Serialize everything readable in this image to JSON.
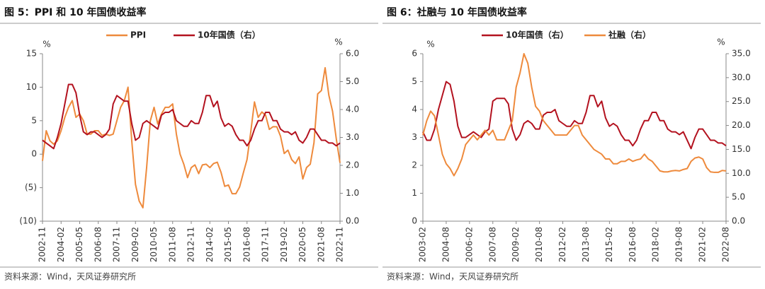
{
  "chart_data": [
    {
      "type": "line",
      "title": "图 5：PPI 和 10 年国债收益率",
      "source": "资料来源：Wind，天风证券研究所",
      "y_unit": "%",
      "y2_unit": "%",
      "categories": [
        "2002-11",
        null,
        null,
        null,
        null,
        "2004-02",
        null,
        null,
        null,
        null,
        "2005-05",
        null,
        null,
        null,
        null,
        "2006-08",
        null,
        null,
        null,
        null,
        "2007-11",
        null,
        null,
        null,
        null,
        "2009-02",
        null,
        null,
        null,
        null,
        "2010-05",
        null,
        null,
        null,
        null,
        "2011-08",
        null,
        null,
        null,
        null,
        "2012-11",
        null,
        null,
        null,
        null,
        "2014-02",
        null,
        null,
        null,
        null,
        "2015-05",
        null,
        null,
        null,
        null,
        "2016-08",
        null,
        null,
        null,
        null,
        "2017-11",
        null,
        null,
        null,
        null,
        "2019-02",
        null,
        null,
        null,
        null,
        "2020-05",
        null,
        null,
        null,
        null,
        "2021-08",
        null,
        null,
        null,
        null,
        "2022-11"
      ],
      "ylim": [
        -10,
        15
      ],
      "yticks": [
        {
          "value": -10,
          "label": "(10)"
        },
        {
          "value": -5,
          "label": "(5)"
        },
        0,
        5,
        10,
        15
      ],
      "y2lim": [
        0,
        6
      ],
      "y2ticks": [
        {
          "value": 0,
          "label": "0.0"
        },
        {
          "value": 1,
          "label": "1.0"
        },
        {
          "value": 2,
          "label": "2.0"
        },
        {
          "value": 3,
          "label": "3.0"
        },
        {
          "value": 4,
          "label": "4.0"
        },
        {
          "value": 5,
          "label": "5.0"
        },
        {
          "value": 6,
          "label": "6.0"
        }
      ],
      "series": [
        {
          "name": "PPI",
          "color": "#ee8a3c",
          "values": [
            -1,
            3.5,
            2,
            1.5,
            2,
            3.5,
            5.5,
            7,
            8,
            5.5,
            6,
            5,
            3,
            3,
            3.5,
            3.5,
            2.8,
            3,
            2.8,
            3,
            5,
            7,
            8,
            10,
            2,
            -4.5,
            -7,
            -8,
            -2,
            5,
            7,
            4.5,
            6,
            7,
            7,
            7.5,
            3,
            0,
            -1.5,
            -3.5,
            -2,
            -1.6,
            -2.9,
            -1.6,
            -1.5,
            -2,
            -1.4,
            -1.2,
            -2.7,
            -4.8,
            -4.6,
            -5.9,
            -5.9,
            -4.9,
            -2.8,
            -0.8,
            3.3,
            7.8,
            5.5,
            6.3,
            5.8,
            3.7,
            4.1,
            4.1,
            2.7,
            0.1,
            0.6,
            -0.8,
            -1.4,
            -0.4,
            -3.7,
            -2,
            -1.5,
            1.7,
            9,
            9.5,
            12.9,
            8.8,
            6.4,
            2.3,
            -1.3
          ]
        },
        {
          "name": "10年国债（右）",
          "color": "#b3121f",
          "axis": "y2",
          "values": [
            2.9,
            2.8,
            2.7,
            2.6,
            3.0,
            3.5,
            4.2,
            4.9,
            4.9,
            4.6,
            3.8,
            3.2,
            3.1,
            3.2,
            3.2,
            3.1,
            3.0,
            3.1,
            3.3,
            4.2,
            4.5,
            4.4,
            4.3,
            4.3,
            3.5,
            2.9,
            3.0,
            3.5,
            3.6,
            3.5,
            3.4,
            3.3,
            3.8,
            3.9,
            3.9,
            4.0,
            3.6,
            3.5,
            3.4,
            3.4,
            3.6,
            3.5,
            3.5,
            3.9,
            4.5,
            4.5,
            4.1,
            4.3,
            3.7,
            3.4,
            3.5,
            3.4,
            3.1,
            2.9,
            2.9,
            2.7,
            2.9,
            3.3,
            3.6,
            3.6,
            3.9,
            3.9,
            3.6,
            3.6,
            3.3,
            3.2,
            3.2,
            3.1,
            3.2,
            2.9,
            2.8,
            3.0,
            3.3,
            3.3,
            3.1,
            2.9,
            2.9,
            2.8,
            2.8,
            2.7,
            2.8
          ]
        }
      ]
    },
    {
      "type": "line",
      "title": "图 6：社融与 10 年国债收益率",
      "source": "资料来源：Wind，天风证券研究所",
      "y_unit": "%",
      "y2_unit": "%",
      "categories": [
        "2003-02",
        null,
        null,
        null,
        null,
        null,
        "2004-08",
        null,
        null,
        null,
        null,
        null,
        "2006-02",
        null,
        null,
        null,
        null,
        null,
        "2007-08",
        null,
        null,
        null,
        null,
        null,
        "2009-02",
        null,
        null,
        null,
        null,
        null,
        "2010-08",
        null,
        null,
        null,
        null,
        null,
        "2012-02",
        null,
        null,
        null,
        null,
        null,
        "2013-08",
        null,
        null,
        null,
        null,
        null,
        "2015-02",
        null,
        null,
        null,
        null,
        null,
        "2016-08",
        null,
        null,
        null,
        null,
        null,
        "2018-02",
        null,
        null,
        null,
        null,
        null,
        "2019-08",
        null,
        null,
        null,
        null,
        null,
        "2021-02",
        null,
        null,
        null,
        null,
        null,
        "2022-08"
      ],
      "ylim": [
        0,
        6
      ],
      "yticks": [
        0,
        1,
        2,
        3,
        4,
        5,
        6
      ],
      "y2lim": [
        0,
        35
      ],
      "y2ticks": [
        {
          "value": 0,
          "label": "0.0"
        },
        {
          "value": 5,
          "label": "5.0"
        },
        {
          "value": 10,
          "label": "10.0"
        },
        {
          "value": 15,
          "label": "15.0"
        },
        {
          "value": 20,
          "label": "20.0"
        },
        {
          "value": 25,
          "label": "25.0"
        },
        {
          "value": 30,
          "label": "30.0"
        },
        {
          "value": 35,
          "label": "35.0"
        }
      ],
      "series": [
        {
          "name": "10年国债（右）",
          "color": "#b3121f",
          "values": [
            3.2,
            2.9,
            2.9,
            3.3,
            4.0,
            4.5,
            5.0,
            4.9,
            4.3,
            3.4,
            3.0,
            3.0,
            3.1,
            3.2,
            3.1,
            3.0,
            3.2,
            3.3,
            4.3,
            4.4,
            4.4,
            4.4,
            4.2,
            3.3,
            2.9,
            3.1,
            3.5,
            3.6,
            3.5,
            3.3,
            3.3,
            3.8,
            3.9,
            3.9,
            4.0,
            3.6,
            3.5,
            3.4,
            3.4,
            3.6,
            3.5,
            3.5,
            3.9,
            4.5,
            4.5,
            4.1,
            4.3,
            3.7,
            3.4,
            3.5,
            3.4,
            3.1,
            2.9,
            2.9,
            2.7,
            2.9,
            3.3,
            3.6,
            3.6,
            3.9,
            3.9,
            3.6,
            3.6,
            3.3,
            3.2,
            3.2,
            3.1,
            3.2,
            2.9,
            2.6,
            3.0,
            3.3,
            3.3,
            3.1,
            2.9,
            2.9,
            2.8,
            2.8,
            2.7
          ]
        },
        {
          "name": "社融（右）",
          "color": "#ee8a3c",
          "axis": "y2",
          "values": [
            18,
            21,
            23,
            22,
            18,
            14,
            12,
            11,
            9.5,
            11,
            13,
            16,
            17,
            18,
            17,
            18,
            19,
            18,
            19,
            17,
            17,
            17,
            19,
            21,
            28,
            31,
            35,
            33,
            28,
            24,
            23,
            21,
            20,
            19,
            18,
            18,
            18,
            18,
            19,
            20,
            20,
            18,
            17,
            16,
            15,
            14.5,
            14,
            13,
            13,
            12,
            12,
            12.5,
            12.5,
            13,
            12.5,
            12.8,
            13,
            14,
            13,
            12.5,
            11.5,
            10.5,
            10.3,
            10.3,
            10.5,
            10.6,
            10.5,
            10.8,
            11,
            12.5,
            13.2,
            13.4,
            13,
            11.2,
            10.3,
            10.2,
            10.2,
            10.6,
            10.5
          ]
        }
      ]
    }
  ]
}
